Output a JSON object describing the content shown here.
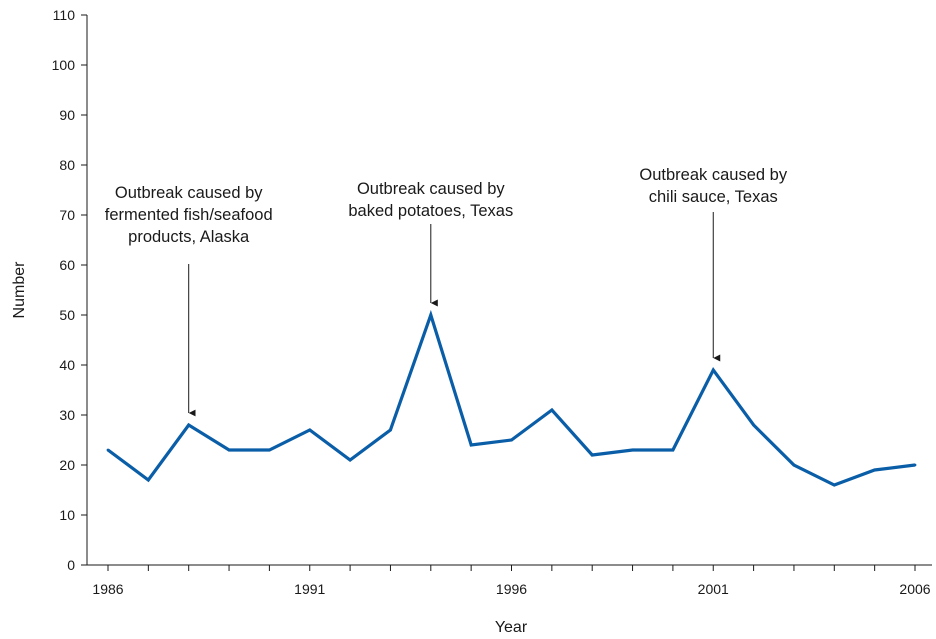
{
  "chart_data": {
    "type": "line",
    "title": "",
    "xlabel": "Year",
    "ylabel": "Number",
    "ylim": [
      0,
      110
    ],
    "xlim": [
      1986,
      2006
    ],
    "y_ticks": [
      0,
      10,
      20,
      30,
      40,
      50,
      60,
      70,
      80,
      90,
      100,
      110
    ],
    "x_ticks": [
      1986,
      1991,
      1996,
      2001,
      2006
    ],
    "grid": false,
    "line_color": "#0a5ea8",
    "x": [
      1986,
      1987,
      1988,
      1989,
      1990,
      1991,
      1992,
      1993,
      1994,
      1995,
      1996,
      1997,
      1998,
      1999,
      2000,
      2001,
      2002,
      2003,
      2004,
      2005,
      2006
    ],
    "values": [
      23,
      17,
      28,
      23,
      23,
      27,
      21,
      27,
      50,
      24,
      25,
      31,
      22,
      23,
      23,
      39,
      28,
      20,
      16,
      19,
      20
    ],
    "annotations": [
      {
        "year": 1988,
        "lines": [
          "Outbreak caused by",
          "fermented fish/seafood",
          "products, Alaska"
        ]
      },
      {
        "year": 1994,
        "lines": [
          "Outbreak caused by",
          "baked potatoes, Texas"
        ]
      },
      {
        "year": 2001,
        "lines": [
          "Outbreak caused by",
          "chili sauce, Texas"
        ]
      }
    ]
  }
}
